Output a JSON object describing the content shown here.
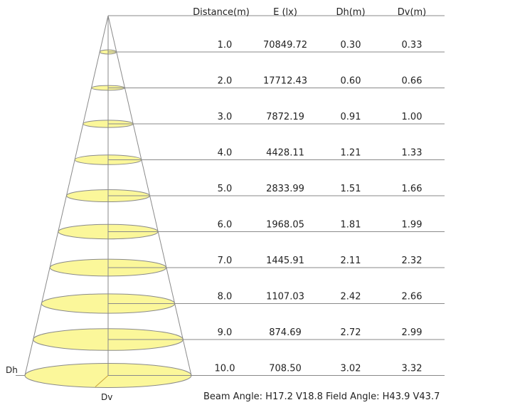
{
  "headers": {
    "distance": "Distance(m)",
    "illuminance": "E (lx)",
    "dh": "Dh(m)",
    "dv": "Dv(m)"
  },
  "rows": [
    {
      "distance": "1.0",
      "illuminance": "70849.72",
      "dh": "0.30",
      "dv": "0.33"
    },
    {
      "distance": "2.0",
      "illuminance": "17712.43",
      "dh": "0.60",
      "dv": "0.66"
    },
    {
      "distance": "3.0",
      "illuminance": "7872.19",
      "dh": "0.91",
      "dv": "1.00"
    },
    {
      "distance": "4.0",
      "illuminance": "4428.11",
      "dh": "1.21",
      "dv": "1.33"
    },
    {
      "distance": "5.0",
      "illuminance": "2833.99",
      "dh": "1.51",
      "dv": "1.66"
    },
    {
      "distance": "6.0",
      "illuminance": "1968.05",
      "dh": "1.81",
      "dv": "1.99"
    },
    {
      "distance": "7.0",
      "illuminance": "1445.91",
      "dh": "2.11",
      "dv": "2.32"
    },
    {
      "distance": "8.0",
      "illuminance": "1107.03",
      "dh": "2.42",
      "dv": "2.66"
    },
    {
      "distance": "9.0",
      "illuminance": "874.69",
      "dh": "2.72",
      "dv": "2.99"
    },
    {
      "distance": "10.0",
      "illuminance": "708.50",
      "dh": "3.02",
      "dv": "3.32"
    }
  ],
  "axis_labels": {
    "dh": "Dh",
    "dv": "Dv"
  },
  "footer": "Beam Angle: H17.2 V18.8  Field Angle: H43.9 V43.7",
  "colors": {
    "ellipse_fill": "#fbf79a",
    "line": "#8a8a8a",
    "text": "#222222"
  }
}
